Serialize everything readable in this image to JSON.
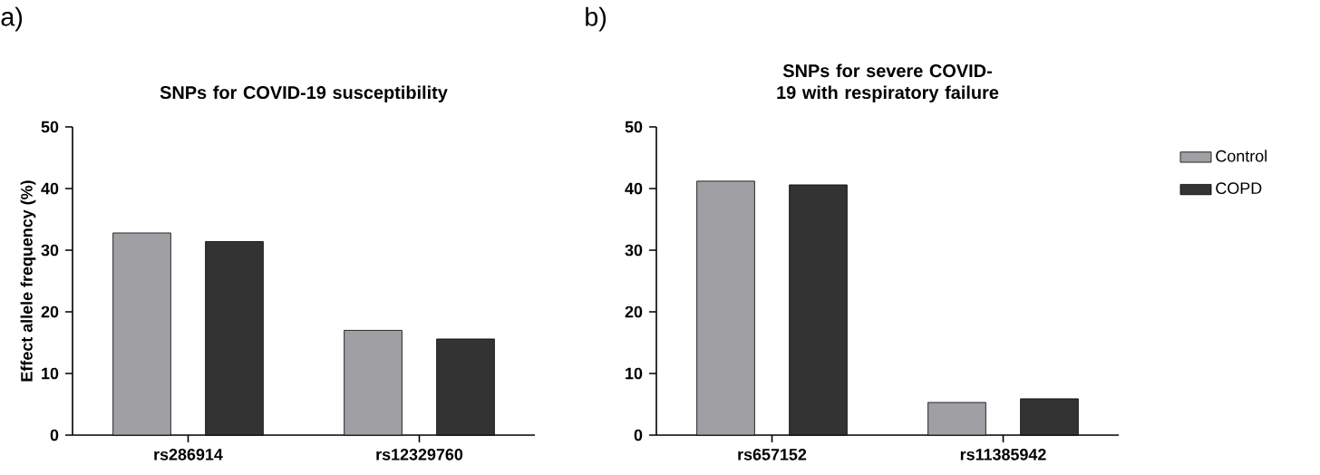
{
  "chart_data": [
    {
      "type": "bar",
      "title": "SNPs for COVID-19 susceptibility",
      "ylabel": "Effect allele frequency (%)",
      "annotations": [
        "a)"
      ],
      "categories": [
        "rs286914",
        "rs12329760"
      ],
      "ylim": [
        0,
        50
      ],
      "yticks": [
        0,
        10,
        20,
        30,
        40,
        50
      ],
      "series": [
        {
          "color": "#a0a0a4",
          "values": [
            32.8,
            17.0
          ]
        },
        {
          "color": "#333333",
          "values": [
            31.4,
            15.6
          ]
        }
      ]
    },
    {
      "type": "bar",
      "title": "SNPs for severe COVID-19 with respiratory failure",
      "annotations": [
        "b)"
      ],
      "categories": [
        "rs657152",
        "rs11385942"
      ],
      "ylim": [
        0,
        50
      ],
      "yticks": [
        0,
        10,
        20,
        30,
        40,
        50
      ],
      "legend": "right",
      "series": [
        {
          "name": "Control",
          "color": "#a0a0a4",
          "values": [
            41.2,
            5.3
          ]
        },
        {
          "name": "COPD",
          "color": "#333333",
          "values": [
            40.6,
            5.9
          ]
        }
      ]
    }
  ]
}
